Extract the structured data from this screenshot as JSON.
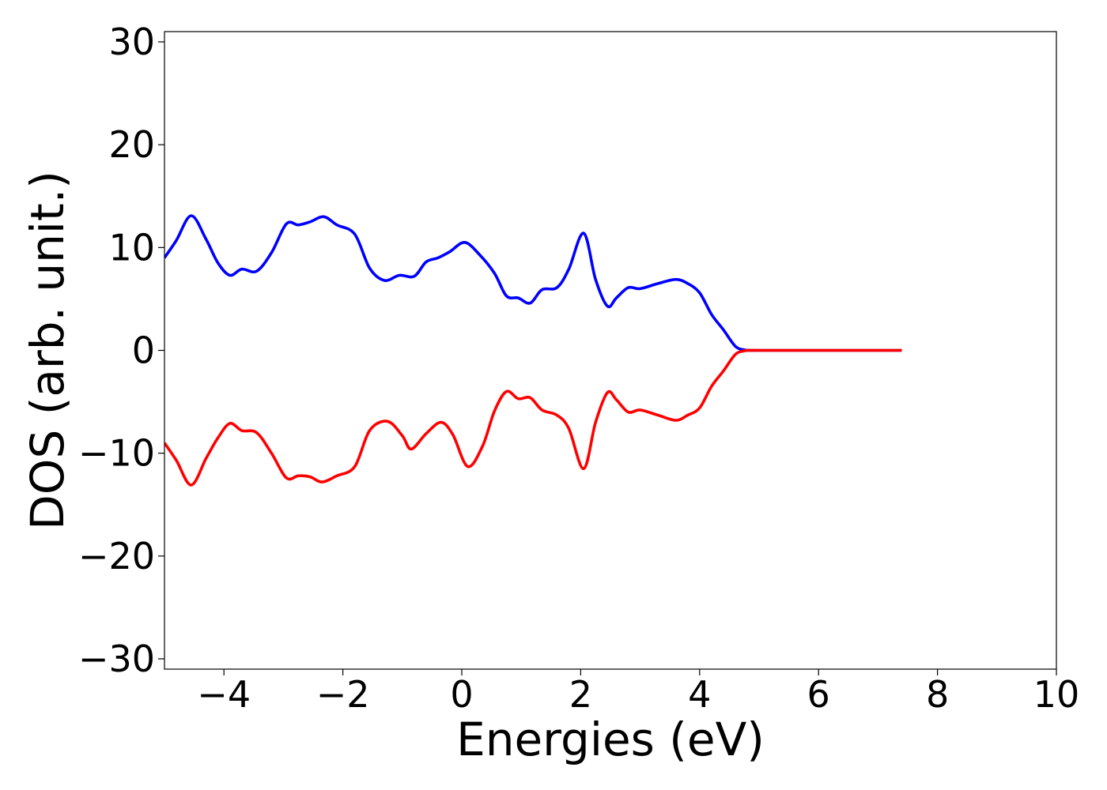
{
  "chart_data": {
    "type": "line",
    "title": "",
    "xlabel": "Energies (eV)",
    "ylabel": "DOS (arb. unit.)",
    "xlim": [
      -5,
      10
    ],
    "ylim": [
      -31,
      31
    ],
    "xticks": [
      -4,
      -2,
      0,
      2,
      4,
      6,
      8,
      10
    ],
    "yticks": [
      -30,
      -20,
      -10,
      0,
      10,
      20,
      30
    ],
    "xtick_labels": [
      "−4",
      "−2",
      "0",
      "2",
      "4",
      "6",
      "8",
      "10"
    ],
    "ytick_labels": [
      "−30",
      "−20",
      "−10",
      "0",
      "10",
      "20",
      "30"
    ],
    "grid": false,
    "legend": "none",
    "series": [
      {
        "color": "#0000ff",
        "x": [
          -5.0,
          -4.8,
          -4.55,
          -4.3,
          -4.1,
          -3.9,
          -3.7,
          -3.45,
          -3.2,
          -2.95,
          -2.75,
          -2.55,
          -2.32,
          -2.1,
          -1.8,
          -1.55,
          -1.3,
          -1.05,
          -0.8,
          -0.6,
          -0.4,
          -0.2,
          0.05,
          0.3,
          0.55,
          0.75,
          0.95,
          1.15,
          1.35,
          1.6,
          1.8,
          2.05,
          2.25,
          2.45,
          2.6,
          2.8,
          3.0,
          3.3,
          3.6,
          3.8,
          4.0,
          4.2,
          4.4,
          4.6,
          4.75,
          4.85,
          5.0,
          6.0,
          7.0,
          7.4
        ],
        "values": [
          9.0,
          10.7,
          13.1,
          10.8,
          8.5,
          7.3,
          7.9,
          7.7,
          9.5,
          12.3,
          12.2,
          12.5,
          13.0,
          12.2,
          11.3,
          8.0,
          6.8,
          7.3,
          7.2,
          8.6,
          9.0,
          9.6,
          10.5,
          9.3,
          7.5,
          5.3,
          5.1,
          4.6,
          5.9,
          6.1,
          7.9,
          11.4,
          6.9,
          4.3,
          5.1,
          6.1,
          6.0,
          6.5,
          6.9,
          6.5,
          5.6,
          3.5,
          2.0,
          0.4,
          0.05,
          0.0,
          0.0,
          0.0,
          0.0,
          0.0
        ]
      },
      {
        "color": "#ff0000",
        "x": [
          -5.0,
          -4.8,
          -4.55,
          -4.3,
          -4.1,
          -3.9,
          -3.7,
          -3.45,
          -3.2,
          -2.95,
          -2.75,
          -2.55,
          -2.35,
          -2.1,
          -1.8,
          -1.55,
          -1.25,
          -1.0,
          -0.85,
          -0.6,
          -0.35,
          -0.15,
          0.1,
          0.35,
          0.55,
          0.75,
          0.95,
          1.15,
          1.35,
          1.6,
          1.8,
          2.05,
          2.25,
          2.45,
          2.6,
          2.8,
          3.0,
          3.3,
          3.6,
          3.8,
          4.0,
          4.2,
          4.4,
          4.6,
          4.75,
          4.85,
          5.0,
          6.0,
          7.0,
          7.4
        ],
        "values": [
          -9.0,
          -10.7,
          -13.1,
          -10.5,
          -8.5,
          -7.1,
          -7.8,
          -8.0,
          -10.0,
          -12.4,
          -12.2,
          -12.3,
          -12.8,
          -12.2,
          -11.3,
          -7.8,
          -6.9,
          -8.3,
          -9.6,
          -8.1,
          -7.0,
          -8.2,
          -11.3,
          -9.3,
          -5.9,
          -4.0,
          -4.7,
          -4.6,
          -5.8,
          -6.3,
          -7.6,
          -11.5,
          -7.0,
          -4.1,
          -4.8,
          -6.0,
          -5.8,
          -6.3,
          -6.8,
          -6.3,
          -5.6,
          -3.5,
          -2.0,
          -0.4,
          -0.05,
          0.0,
          0.0,
          0.0,
          0.0,
          0.0
        ]
      }
    ]
  }
}
